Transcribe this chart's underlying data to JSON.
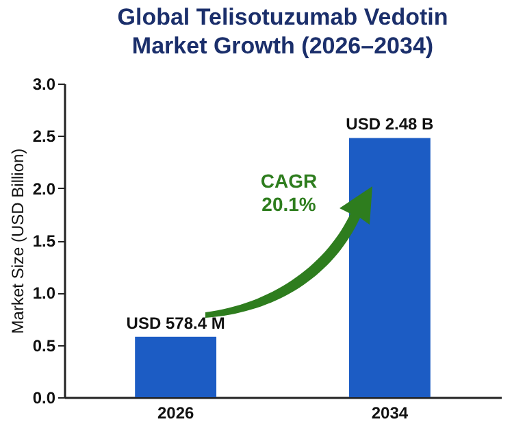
{
  "chart_data": {
    "type": "bar",
    "title": "Global Telisotuzumab Vedotin Market Growth (2026–2034)",
    "ylabel": "Market Size (USD Billion)",
    "categories": [
      "2026",
      "2034"
    ],
    "values": [
      0.5784,
      2.48
    ],
    "value_labels": [
      "USD 578.4 M",
      "USD 2.48 B"
    ],
    "color": "#1c5cc4",
    "ylim": [
      0,
      3
    ],
    "yticks": [
      {
        "value": 0,
        "label": "0.0"
      },
      {
        "value": 0.5,
        "label": "0.5"
      },
      {
        "value": 1,
        "label": "1.0"
      },
      {
        "value": 1.5,
        "label": "1.5"
      },
      {
        "value": 2,
        "label": "2.0"
      },
      {
        "value": 2.5,
        "label": "2.5"
      },
      {
        "value": 3,
        "label": "3.0"
      }
    ],
    "annotations": [
      "CAGR 20.1%"
    ],
    "grid": false
  }
}
